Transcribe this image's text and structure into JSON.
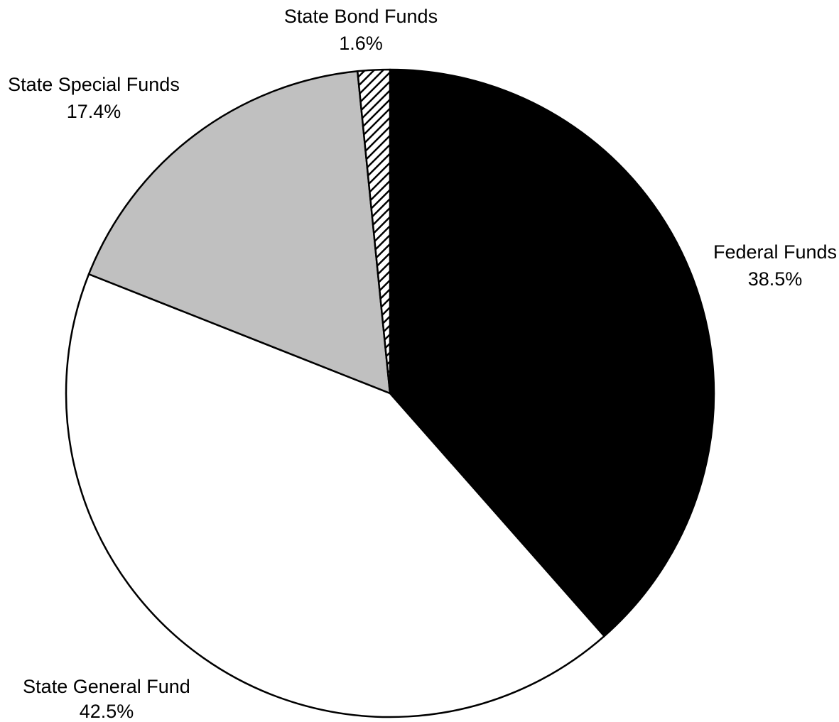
{
  "chart_data": {
    "type": "pie",
    "title": "",
    "start_angle_deg": 90,
    "direction": "clockwise",
    "legend": "none",
    "slices": [
      {
        "id": "federal",
        "name": "Federal Funds",
        "value": 38.5,
        "value_label": "38.5%",
        "fill": "#000000",
        "pattern": "solid"
      },
      {
        "id": "general",
        "name": "State General Fund",
        "value": 42.5,
        "value_label": "42.5%",
        "fill": "#ffffff",
        "pattern": "solid"
      },
      {
        "id": "special",
        "name": "State Special Funds",
        "value": 17.4,
        "value_label": "17.4%",
        "fill": "#c0c0c0",
        "pattern": "solid"
      },
      {
        "id": "bond",
        "name": "State Bond Funds",
        "value": 1.6,
        "value_label": "1.6%",
        "fill": "#ffffff",
        "pattern": "diagonal-hatch"
      }
    ]
  }
}
